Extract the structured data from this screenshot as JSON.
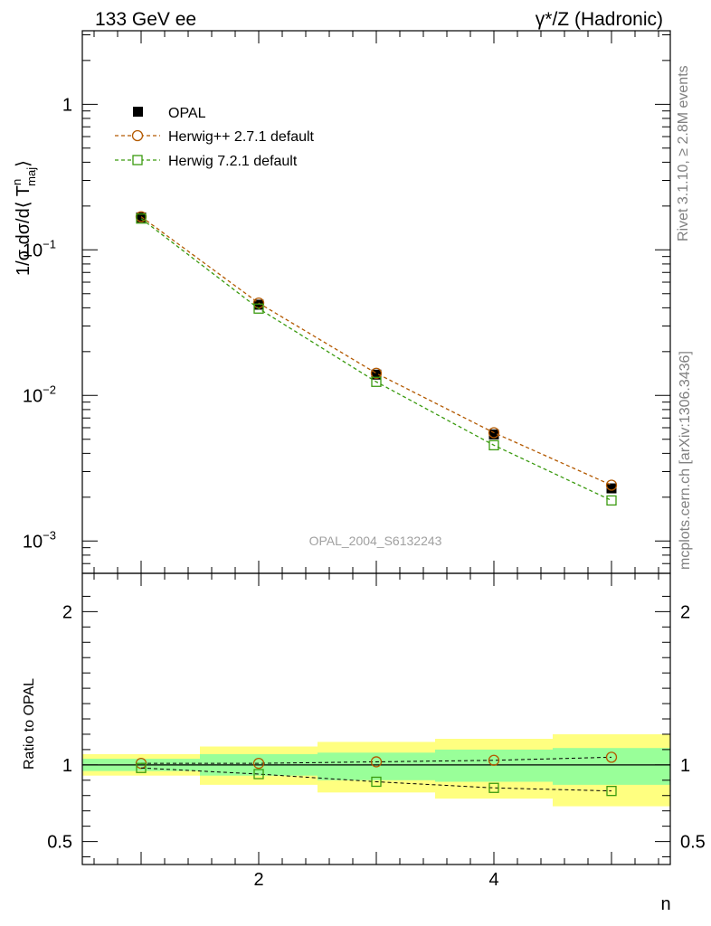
{
  "header": {
    "left": "133 GeV ee",
    "right": "γ*/Z (Hadronic)"
  },
  "side_labels": {
    "rivet": "Rivet 3.1.10, ≥ 2.8M events",
    "mcplots": "mcplots.cern.ch [arXiv:1306.3436]"
  },
  "watermark": "OPAL_2004_S6132243",
  "chart_data": [
    {
      "type": "line",
      "title": "",
      "ylabel": "1/σ dσ/d⟨T_maj^n⟩",
      "yscale": "log",
      "xlim": [
        0.5,
        5.5
      ],
      "ylim": [
        0.0006,
        3.2
      ],
      "x_ticks": [
        2,
        4
      ],
      "y_ticks": [
        {
          "value": 1,
          "label": "1"
        },
        {
          "value": 0.1,
          "label": "10",
          "exp": "−1"
        },
        {
          "value": 0.01,
          "label": "10",
          "exp": "−2"
        },
        {
          "value": 0.001,
          "label": "10",
          "exp": "−3"
        }
      ],
      "legend_position": "top-left",
      "x": [
        1,
        2,
        3,
        4,
        5
      ],
      "series": [
        {
          "name": "OPAL",
          "marker": "filled-square",
          "color": "#000000",
          "values": [
            0.167,
            0.042,
            0.0139,
            0.0054,
            0.0023
          ]
        },
        {
          "name": "Herwig++ 2.7.1 default",
          "marker": "open-circle",
          "color": "#b35900",
          "values": [
            0.169,
            0.0431,
            0.0142,
            0.00555,
            0.00242
          ]
        },
        {
          "name": "Herwig 7.2.1 default",
          "marker": "open-square",
          "color": "#3a9a0f",
          "values": [
            0.164,
            0.0395,
            0.0124,
            0.00455,
            0.0019
          ]
        }
      ]
    },
    {
      "type": "line",
      "title": "",
      "ylabel": "Ratio to OPAL",
      "xlabel": "n",
      "xlim": [
        0.5,
        5.5
      ],
      "ylim": [
        0.35,
        2.25
      ],
      "x_ticks": [
        2,
        4
      ],
      "y_ticks": [
        0.5,
        1,
        2
      ],
      "x": [
        1,
        2,
        3,
        4,
        5
      ],
      "bins": [
        [
          0.5,
          1.5
        ],
        [
          1.5,
          2.5
        ],
        [
          2.5,
          3.5
        ],
        [
          3.5,
          4.5
        ],
        [
          4.5,
          5.5
        ]
      ],
      "band_stat": [
        [
          0.96,
          1.04
        ],
        [
          0.93,
          1.07
        ],
        [
          0.9,
          1.08
        ],
        [
          0.89,
          1.1
        ],
        [
          0.87,
          1.11
        ]
      ],
      "band_total": [
        [
          0.93,
          1.07
        ],
        [
          0.87,
          1.12
        ],
        [
          0.82,
          1.15
        ],
        [
          0.78,
          1.17
        ],
        [
          0.73,
          1.2
        ]
      ],
      "series": [
        {
          "name": "Herwig++ 2.7.1 default",
          "marker": "open-circle",
          "color": "#b35900",
          "values": [
            1.01,
            1.01,
            1.02,
            1.03,
            1.05
          ]
        },
        {
          "name": "Herwig 7.2.1 default",
          "marker": "open-square",
          "color": "#3a9a0f",
          "values": [
            0.98,
            0.94,
            0.89,
            0.85,
            0.83
          ]
        }
      ]
    }
  ]
}
